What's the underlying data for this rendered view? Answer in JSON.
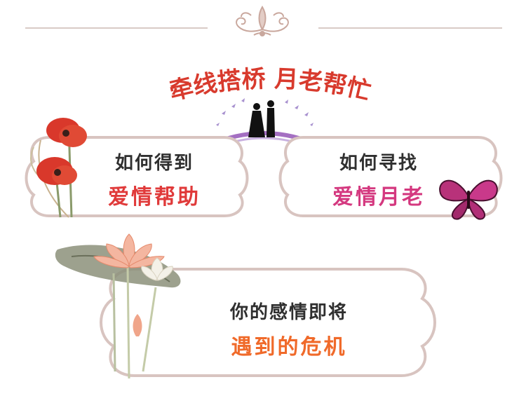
{
  "header": {
    "ornament_icon": "flourish-ornament-icon"
  },
  "banner": {
    "title": "牵线搭桥  月老帮忙"
  },
  "cards": [
    {
      "line1": "如何得到",
      "line2": "爱情帮助"
    },
    {
      "line1": "如何寻找",
      "line2": "爱情月老"
    },
    {
      "line1": "你的感情即将",
      "line2": "遇到的危机"
    }
  ],
  "colors": {
    "title_red": "#d83a2d",
    "card_border": "#d8c4c0",
    "red_text": "#e03a3a",
    "pink_text": "#d4387f",
    "orange_text": "#f06a2a"
  },
  "decorations": [
    "poppy-flower-icon",
    "couple-on-bridge-icon",
    "butterfly-icon",
    "lotus-flower-icon"
  ]
}
